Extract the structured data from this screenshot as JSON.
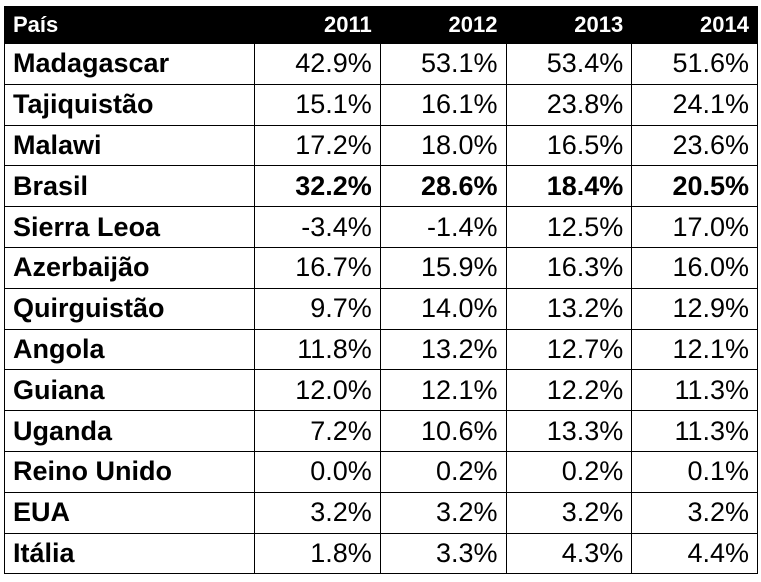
{
  "chart_data": {
    "type": "table",
    "columns": [
      "País",
      "2011",
      "2012",
      "2013",
      "2014"
    ],
    "rows": [
      {
        "country": "Madagascar",
        "values": [
          "42.9%",
          "53.1%",
          "53.4%",
          "51.6%"
        ],
        "bold": false
      },
      {
        "country": "Tajiquistão",
        "values": [
          "15.1%",
          "16.1%",
          "23.8%",
          "24.1%"
        ],
        "bold": false
      },
      {
        "country": "Malawi",
        "values": [
          "17.2%",
          "18.0%",
          "16.5%",
          "23.6%"
        ],
        "bold": false
      },
      {
        "country": "Brasil",
        "values": [
          "32.2%",
          "28.6%",
          "18.4%",
          "20.5%"
        ],
        "bold": true
      },
      {
        "country": "Sierra Leoa",
        "values": [
          "-3.4%",
          "-1.4%",
          "12.5%",
          "17.0%"
        ],
        "bold": false
      },
      {
        "country": "Azerbaijão",
        "values": [
          "16.7%",
          "15.9%",
          "16.3%",
          "16.0%"
        ],
        "bold": false
      },
      {
        "country": "Quirguistão",
        "values": [
          "9.7%",
          "14.0%",
          "13.2%",
          "12.9%"
        ],
        "bold": false
      },
      {
        "country": "Angola",
        "values": [
          "11.8%",
          "13.2%",
          "12.7%",
          "12.1%"
        ],
        "bold": false
      },
      {
        "country": "Guiana",
        "values": [
          "12.0%",
          "12.1%",
          "12.2%",
          "11.3%"
        ],
        "bold": false
      },
      {
        "country": "Uganda",
        "values": [
          "7.2%",
          "10.6%",
          "13.3%",
          "11.3%"
        ],
        "bold": false
      },
      {
        "country": "Reino Unido",
        "values": [
          "0.0%",
          "0.2%",
          "0.2%",
          "0.1%"
        ],
        "bold": false
      },
      {
        "country": "EUA",
        "values": [
          "3.2%",
          "3.2%",
          "3.2%",
          "3.2%"
        ],
        "bold": false
      },
      {
        "country": "Itália",
        "values": [
          "1.8%",
          "3.3%",
          "4.3%",
          "4.4%"
        ],
        "bold": false
      }
    ]
  },
  "colors": {
    "header_background": "#000000",
    "header_text": "#ffffff",
    "body_text": "#000000",
    "border": "#000000"
  }
}
